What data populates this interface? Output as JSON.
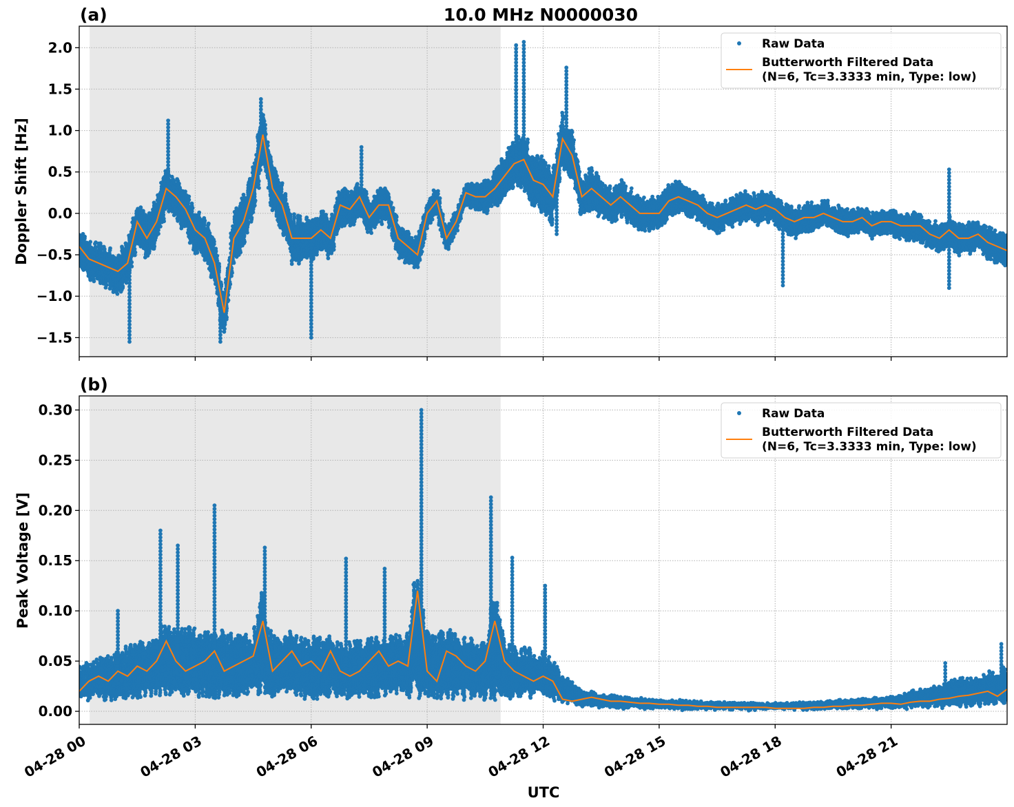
{
  "title": "10.0 MHz N0000030",
  "colors": {
    "raw": "#1f77b4",
    "filtered": "#ff7f0e",
    "shade": "#e8e8e8",
    "grid": "#b0b0b0"
  },
  "chart_data": [
    {
      "type": "scatter",
      "panel_label": "(a)",
      "ylabel": "Doppler Shift [Hz]",
      "xlabel": "",
      "xlim_hours": [
        0,
        24
      ],
      "ylim": [
        -1.73,
        2.26
      ],
      "yticks": [
        -1.5,
        -1.0,
        -0.5,
        0.0,
        0.5,
        1.0,
        1.5,
        2.0
      ],
      "ytick_labels": [
        "−1.5",
        "−1.0",
        "−0.5",
        "0.0",
        "0.5",
        "1.0",
        "1.5",
        "2.0"
      ],
      "grid": true,
      "shaded_interval_hours": [
        0.27,
        10.9
      ],
      "legend": {
        "placement": "upper right",
        "entries": [
          "Raw Data",
          "Butterworth Filtered Data",
          "(N=6, Tc=3.3333 min, Type: low)"
        ]
      },
      "filtered": {
        "name": "Butterworth Filtered Data (N=6, Tc=3.3333 min, Type: low)",
        "x_step_hours": 0.25,
        "values": [
          -0.4,
          -0.55,
          -0.6,
          -0.65,
          -0.7,
          -0.6,
          -0.1,
          -0.3,
          -0.1,
          0.3,
          0.2,
          0.05,
          -0.2,
          -0.3,
          -0.6,
          -1.2,
          -0.3,
          -0.1,
          0.3,
          0.95,
          0.3,
          0.1,
          -0.3,
          -0.3,
          -0.3,
          -0.2,
          -0.3,
          0.1,
          0.05,
          0.2,
          -0.05,
          0.1,
          0.1,
          -0.3,
          -0.4,
          -0.5,
          0.0,
          0.15,
          -0.3,
          -0.1,
          0.25,
          0.2,
          0.2,
          0.3,
          0.45,
          0.6,
          0.65,
          0.4,
          0.35,
          0.2,
          0.9,
          0.7,
          0.2,
          0.3,
          0.2,
          0.1,
          0.2,
          0.1,
          0.0,
          0.0,
          0.0,
          0.15,
          0.2,
          0.15,
          0.1,
          0.0,
          -0.05,
          0.0,
          0.05,
          0.1,
          0.05,
          0.1,
          0.05,
          -0.05,
          -0.1,
          -0.05,
          -0.05,
          0.0,
          -0.05,
          -0.1,
          -0.1,
          -0.05,
          -0.15,
          -0.1,
          -0.1,
          -0.15,
          -0.15,
          -0.15,
          -0.25,
          -0.3,
          -0.2,
          -0.3,
          -0.3,
          -0.25,
          -0.35,
          -0.4,
          -0.45
        ]
      },
      "raw": {
        "name": "Raw Data",
        "spread_step_hours": 1,
        "half_spread": [
          0.25,
          0.3,
          0.3,
          0.3,
          0.35,
          0.35,
          0.3,
          0.25,
          0.25,
          0.2,
          0.15,
          0.3,
          0.4,
          0.3,
          0.25,
          0.22,
          0.2,
          0.2,
          0.22,
          0.2,
          0.18,
          0.18,
          0.2,
          0.22,
          0.22
        ],
        "outliers": [
          [
            2.3,
            1.12
          ],
          [
            11.3,
            2.03
          ],
          [
            11.5,
            2.07
          ],
          [
            12.6,
            1.76
          ],
          [
            7.3,
            0.8
          ],
          [
            22.5,
            0.53
          ],
          [
            3.65,
            -1.55
          ],
          [
            1.3,
            -1.55
          ],
          [
            6.0,
            -1.5
          ],
          [
            18.2,
            -0.87
          ],
          [
            22.5,
            -0.9
          ],
          [
            12.35,
            -0.25
          ],
          [
            4.7,
            1.38
          ]
        ]
      }
    },
    {
      "type": "scatter",
      "panel_label": "(b)",
      "ylabel": "Peak Voltage [V]",
      "xlabel": "UTC",
      "xlim_hours": [
        0,
        24
      ],
      "ylim": [
        -0.013,
        0.314
      ],
      "yticks": [
        0.0,
        0.05,
        0.1,
        0.15,
        0.2,
        0.25,
        0.3
      ],
      "ytick_labels": [
        "0.00",
        "0.05",
        "0.10",
        "0.15",
        "0.20",
        "0.25",
        "0.30"
      ],
      "xticks_hours": [
        0,
        3,
        6,
        9,
        12,
        15,
        18,
        21
      ],
      "xtick_labels": [
        "04-28 00",
        "04-28 03",
        "04-28 06",
        "04-28 09",
        "04-28 12",
        "04-28 15",
        "04-28 18",
        "04-28 21"
      ],
      "grid": true,
      "shaded_interval_hours": [
        0.27,
        10.9
      ],
      "legend": {
        "placement": "upper right",
        "entries": [
          "Raw Data",
          "Butterworth Filtered Data",
          "(N=6, Tc=3.3333 min, Type: low)"
        ]
      },
      "filtered": {
        "name": "Butterworth Filtered Data (N=6, Tc=3.3333 min, Type: low)",
        "x_step_hours": 0.25,
        "values": [
          0.02,
          0.03,
          0.035,
          0.03,
          0.04,
          0.035,
          0.045,
          0.04,
          0.05,
          0.07,
          0.05,
          0.04,
          0.045,
          0.05,
          0.06,
          0.04,
          0.045,
          0.05,
          0.055,
          0.09,
          0.04,
          0.05,
          0.06,
          0.045,
          0.05,
          0.04,
          0.06,
          0.04,
          0.035,
          0.04,
          0.05,
          0.06,
          0.045,
          0.05,
          0.045,
          0.12,
          0.04,
          0.03,
          0.06,
          0.055,
          0.045,
          0.04,
          0.05,
          0.09,
          0.05,
          0.04,
          0.035,
          0.03,
          0.035,
          0.03,
          0.012,
          0.01,
          0.012,
          0.014,
          0.012,
          0.01,
          0.01,
          0.009,
          0.008,
          0.008,
          0.007,
          0.007,
          0.006,
          0.006,
          0.005,
          0.005,
          0.004,
          0.004,
          0.004,
          0.004,
          0.004,
          0.004,
          0.003,
          0.003,
          0.003,
          0.003,
          0.004,
          0.004,
          0.005,
          0.005,
          0.006,
          0.006,
          0.007,
          0.008,
          0.008,
          0.007,
          0.009,
          0.01,
          0.01,
          0.012,
          0.013,
          0.015,
          0.016,
          0.018,
          0.02,
          0.015,
          0.022
        ]
      },
      "raw": {
        "name": "Raw Data",
        "envelope_step_hours": 1,
        "low": [
          0.01,
          0.01,
          0.012,
          0.012,
          0.012,
          0.012,
          0.012,
          0.012,
          0.012,
          0.012,
          0.01,
          0.01,
          0.012,
          0.004,
          0.002,
          0.002,
          0.001,
          0.001,
          0.001,
          0.001,
          0.002,
          0.002,
          0.003,
          0.004,
          0.006
        ],
        "high": [
          0.045,
          0.06,
          0.08,
          0.085,
          0.08,
          0.08,
          0.075,
          0.07,
          0.075,
          0.085,
          0.075,
          0.07,
          0.06,
          0.02,
          0.015,
          0.012,
          0.01,
          0.009,
          0.008,
          0.009,
          0.012,
          0.015,
          0.025,
          0.035,
          0.045
        ],
        "outliers": [
          [
            2.1,
            0.18
          ],
          [
            2.55,
            0.165
          ],
          [
            3.5,
            0.205
          ],
          [
            4.8,
            0.163
          ],
          [
            6.9,
            0.152
          ],
          [
            7.9,
            0.142
          ],
          [
            8.85,
            0.3
          ],
          [
            10.65,
            0.213
          ],
          [
            11.2,
            0.153
          ],
          [
            12.05,
            0.125
          ],
          [
            22.4,
            0.048
          ],
          [
            23.85,
            0.067
          ],
          [
            1.0,
            0.1
          ]
        ]
      }
    }
  ]
}
